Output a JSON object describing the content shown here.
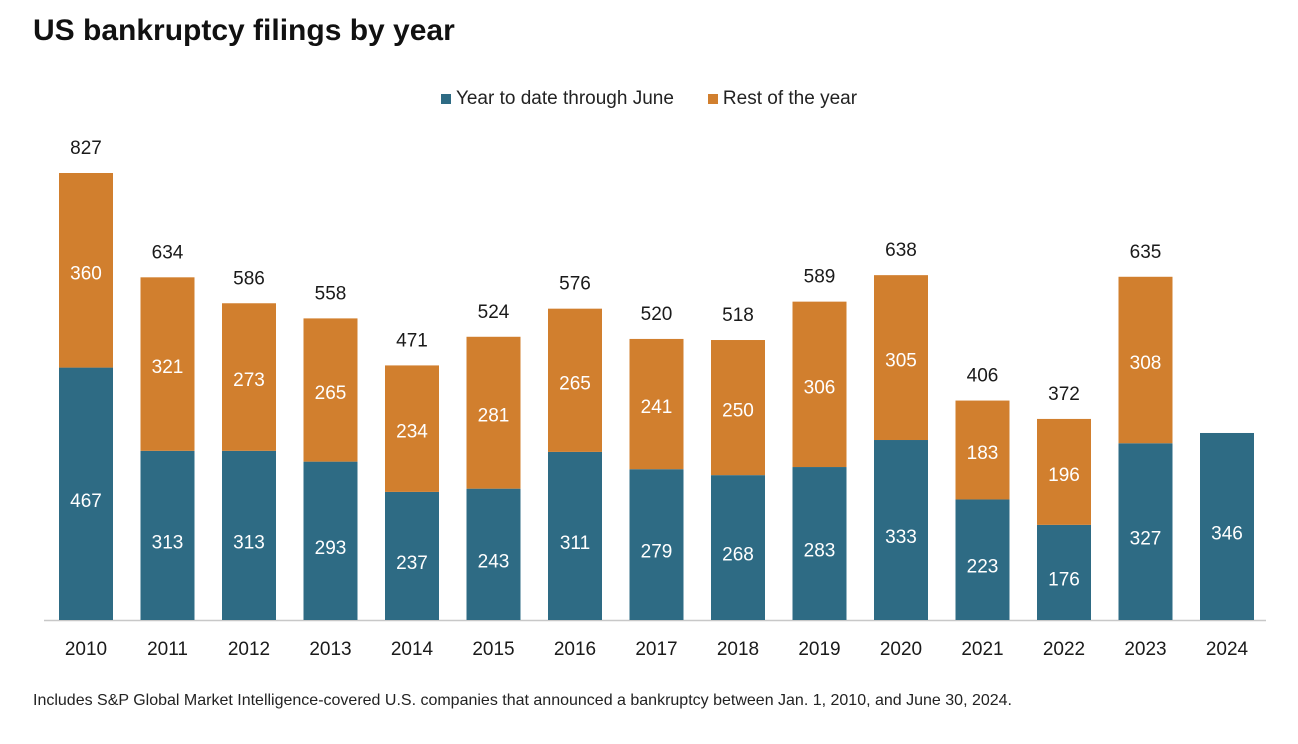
{
  "title": "US bankruptcy filings by year",
  "legend": [
    {
      "label": "Year to date through June",
      "color": "#2e6b84"
    },
    {
      "label": "Rest of the year",
      "color": "#d17f2e"
    }
  ],
  "footnote": "Includes S&P Global Market Intelligence-covered U.S. companies that announced a bankruptcy between Jan. 1, 2010, and June 30, 2024.",
  "chart_data": {
    "type": "bar",
    "stacked": true,
    "title": "US bankruptcy filings by year",
    "categories": [
      "2010",
      "2011",
      "2012",
      "2013",
      "2014",
      "2015",
      "2016",
      "2017",
      "2018",
      "2019",
      "2020",
      "2021",
      "2022",
      "2023",
      "2024"
    ],
    "series": [
      {
        "name": "Year to date through June",
        "color": "#2e6b84",
        "values": [
          467,
          313,
          313,
          293,
          237,
          243,
          311,
          279,
          268,
          283,
          333,
          223,
          176,
          327,
          346
        ]
      },
      {
        "name": "Rest of the year",
        "color": "#d17f2e",
        "values": [
          360,
          321,
          273,
          265,
          234,
          281,
          265,
          241,
          250,
          306,
          305,
          183,
          196,
          308,
          null
        ]
      }
    ],
    "totals": [
      827,
      634,
      586,
      558,
      471,
      524,
      576,
      520,
      518,
      589,
      638,
      406,
      372,
      635,
      null
    ],
    "ylim": [
      0,
      827
    ],
    "grid": false,
    "legend_position": "top-center"
  }
}
